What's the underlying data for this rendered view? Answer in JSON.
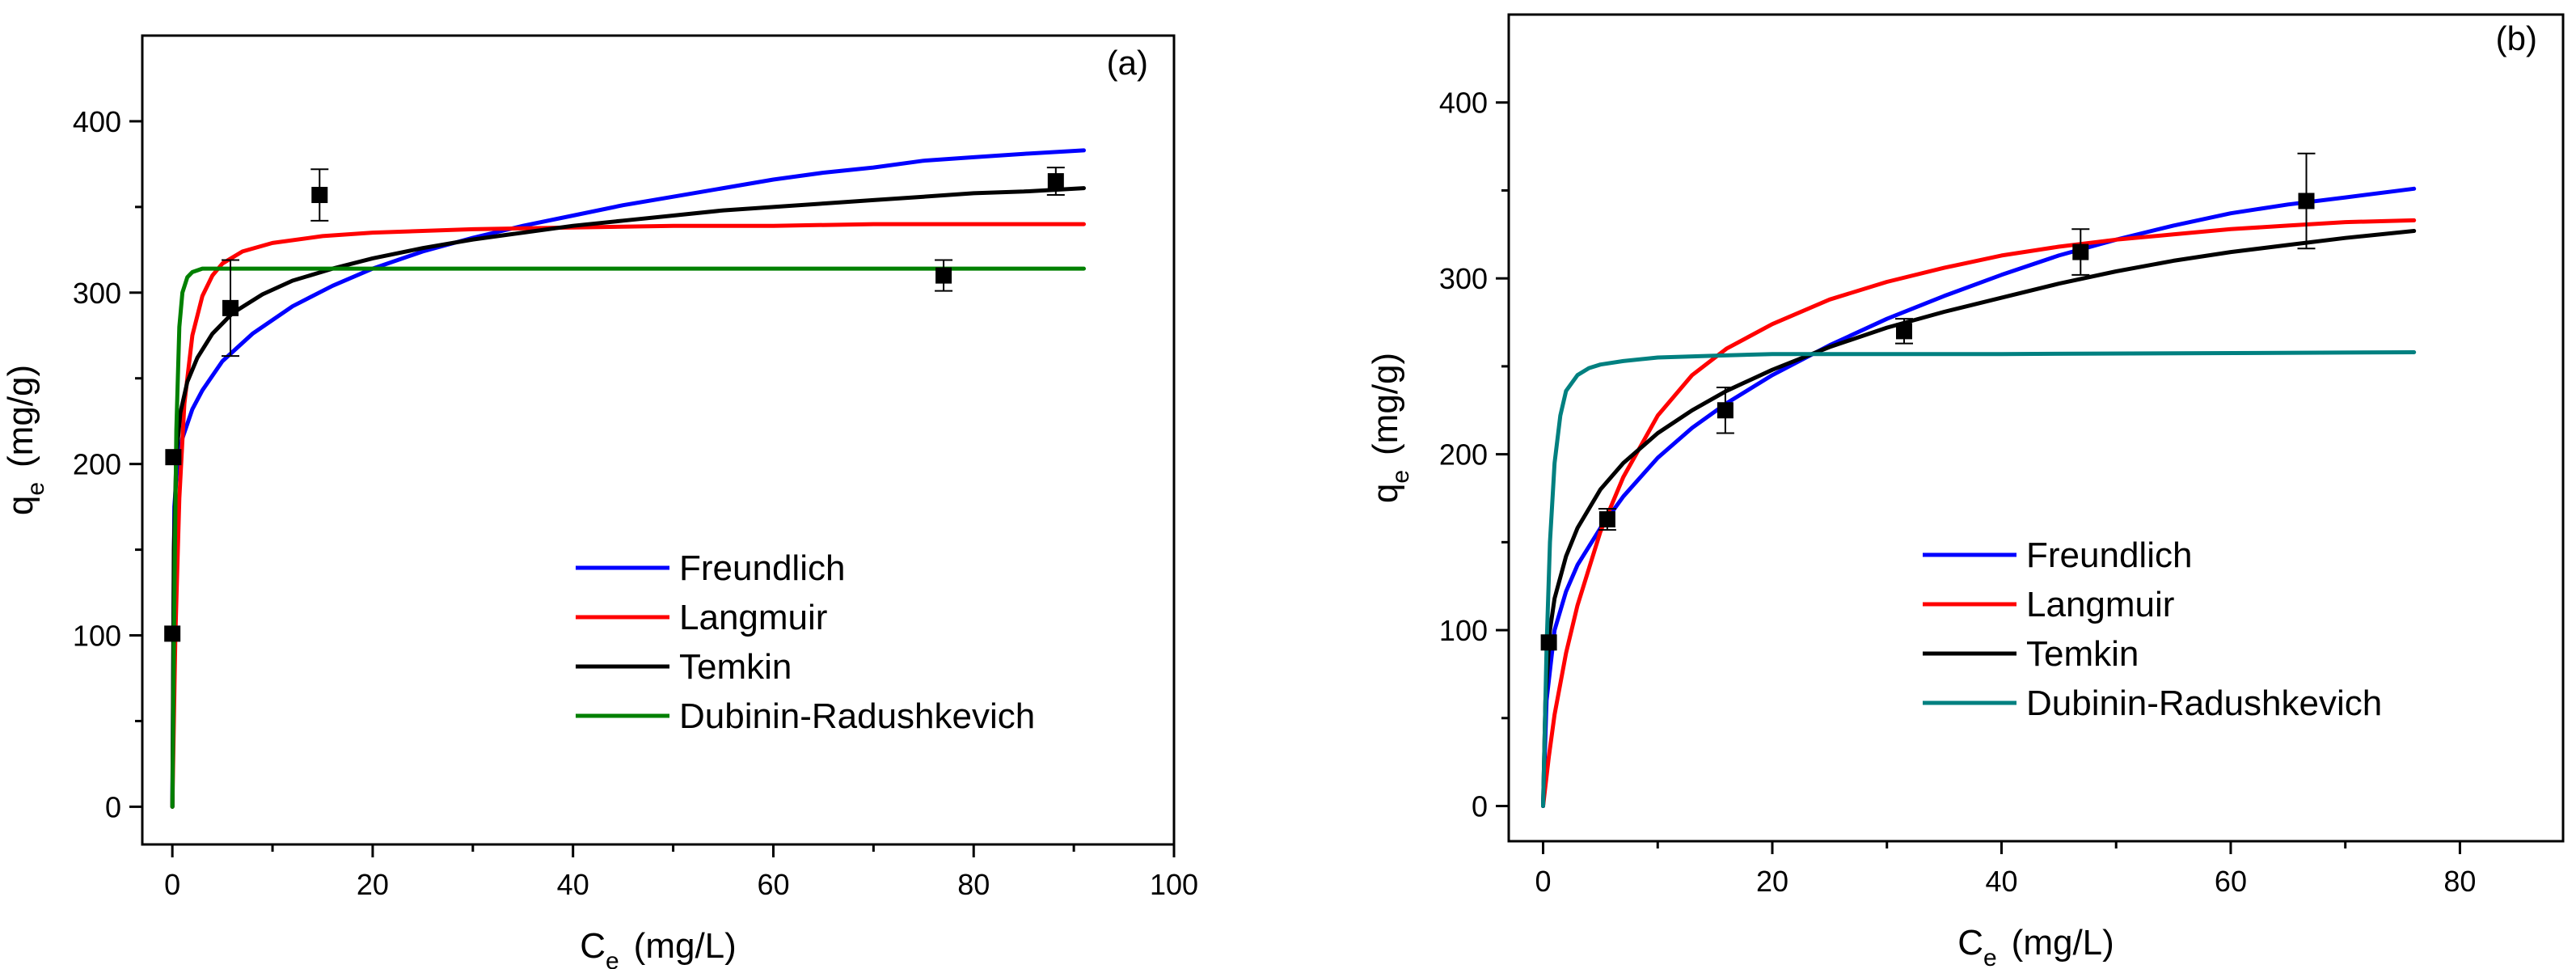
{
  "chart_data": [
    {
      "type": "scatter",
      "panel_label": "(a)",
      "xlabel_main": "C",
      "xlabel_sub": "e",
      "xlabel_unit": "(mg/L)",
      "ylabel_main": "q",
      "ylabel_sub": "e",
      "ylabel_unit": "(mg/g)",
      "xlim": [
        -3,
        100
      ],
      "ylim": [
        -22,
        450
      ],
      "xticks": [
        0,
        20,
        40,
        60,
        80,
        100
      ],
      "yticks": [
        0,
        100,
        200,
        300,
        400
      ],
      "points": [
        {
          "x": 0.0,
          "y": 101,
          "err": 0
        },
        {
          "x": 0.1,
          "y": 204,
          "err": 0
        },
        {
          "x": 5.8,
          "y": 291,
          "err": 28
        },
        {
          "x": 14.7,
          "y": 357,
          "err": 15
        },
        {
          "x": 77.0,
          "y": 310,
          "err": 9
        },
        {
          "x": 88.2,
          "y": 365,
          "err": 8
        }
      ],
      "legend_position": "center-right",
      "series": [
        {
          "name": "Freundlich",
          "color": "#0000ff",
          "x": [
            0,
            0.2,
            0.5,
            1,
            2,
            3,
            5,
            8,
            12,
            16,
            20,
            25,
            30,
            35,
            40,
            45,
            50,
            55,
            60,
            65,
            70,
            75,
            80,
            85,
            91
          ],
          "y": [
            0,
            175,
            200,
            215,
            232,
            243,
            260,
            276,
            292,
            304,
            314,
            324,
            332,
            339,
            345,
            351,
            356,
            361,
            366,
            370,
            373,
            377,
            379,
            381,
            383
          ]
        },
        {
          "name": "Langmuir",
          "color": "#ff0000",
          "x": [
            0,
            0.3,
            0.7,
            1.2,
            2,
            3,
            4,
            5,
            7,
            10,
            15,
            20,
            30,
            40,
            50,
            60,
            70,
            80,
            91
          ],
          "y": [
            0,
            100,
            180,
            235,
            275,
            298,
            310,
            317,
            324,
            329,
            333,
            335,
            337,
            338,
            339,
            339,
            340,
            340,
            340
          ]
        },
        {
          "name": "Temkin",
          "color": "#000000",
          "x": [
            0,
            0.15,
            0.4,
            0.8,
            1.5,
            2.5,
            4,
            6,
            9,
            12,
            16,
            20,
            25,
            30,
            35,
            40,
            45,
            50,
            55,
            60,
            65,
            70,
            75,
            80,
            85,
            91
          ],
          "y": [
            0,
            150,
            205,
            230,
            248,
            262,
            276,
            288,
            299,
            307,
            314,
            320,
            326,
            331,
            335,
            339,
            342,
            345,
            348,
            350,
            352,
            354,
            356,
            358,
            359,
            361
          ]
        },
        {
          "name": "Dubinin-Radushkevich",
          "color": "#008000",
          "x": [
            0,
            0.2,
            0.4,
            0.7,
            1,
            1.5,
            2,
            3,
            5,
            10,
            30,
            60,
            91
          ],
          "y": [
            0,
            120,
            220,
            280,
            300,
            309,
            312,
            314,
            314,
            314,
            314,
            314,
            314
          ]
        }
      ]
    },
    {
      "type": "scatter",
      "panel_label": "(b)",
      "xlabel_main": "C",
      "xlabel_sub": "e",
      "xlabel_unit": "(mg/L)",
      "ylabel_main": "q",
      "ylabel_sub": "e",
      "ylabel_unit": "(mg/g)",
      "xlim": [
        -3,
        89
      ],
      "ylim": [
        -20,
        450
      ],
      "xticks": [
        0,
        20,
        40,
        60,
        80
      ],
      "yticks": [
        0,
        100,
        200,
        300,
        400
      ],
      "points": [
        {
          "x": 0.5,
          "y": 93,
          "err": 0
        },
        {
          "x": 5.6,
          "y": 163,
          "err": 6
        },
        {
          "x": 15.9,
          "y": 225,
          "err": 13
        },
        {
          "x": 31.5,
          "y": 270,
          "err": 7
        },
        {
          "x": 46.9,
          "y": 315,
          "err": 13
        },
        {
          "x": 66.6,
          "y": 344,
          "err": 27
        }
      ],
      "legend_position": "center-right",
      "series": [
        {
          "name": "Freundlich",
          "color": "#0000ff",
          "x": [
            0,
            0.3,
            1,
            2,
            3,
            5,
            7,
            10,
            13,
            16,
            20,
            25,
            30,
            35,
            40,
            45,
            50,
            55,
            60,
            65,
            70,
            76
          ],
          "y": [
            0,
            60,
            100,
            122,
            137,
            158,
            176,
            198,
            215,
            229,
            245,
            262,
            277,
            290,
            302,
            313,
            322,
            330,
            337,
            342,
            346,
            351
          ]
        },
        {
          "name": "Langmuir",
          "color": "#ff0000",
          "x": [
            0,
            0.5,
            1,
            2,
            3,
            5,
            7,
            10,
            13,
            16,
            20,
            25,
            30,
            35,
            40,
            45,
            50,
            55,
            60,
            65,
            70,
            76
          ],
          "y": [
            0,
            28,
            52,
            87,
            114,
            156,
            187,
            222,
            245,
            260,
            274,
            288,
            298,
            306,
            313,
            318,
            322,
            325,
            328,
            330,
            332,
            333
          ]
        },
        {
          "name": "Temkin",
          "color": "#000000",
          "x": [
            0,
            0.2,
            0.6,
            1,
            2,
            3,
            5,
            7,
            10,
            13,
            16,
            20,
            25,
            30,
            35,
            40,
            45,
            50,
            55,
            60,
            65,
            70,
            76
          ],
          "y": [
            0,
            60,
            100,
            118,
            142,
            158,
            180,
            195,
            212,
            225,
            236,
            248,
            261,
            272,
            281,
            289,
            297,
            304,
            310,
            315,
            319,
            323,
            327
          ]
        },
        {
          "name": "Dubinin-Radushkevich",
          "color": "#008080",
          "x": [
            0,
            0.3,
            0.6,
            1,
            1.5,
            2,
            3,
            4,
            5,
            7,
            10,
            15,
            20,
            40,
            76
          ],
          "y": [
            0,
            90,
            150,
            195,
            222,
            236,
            245,
            249,
            251,
            253,
            255,
            256,
            257,
            257,
            258
          ]
        }
      ]
    }
  ]
}
